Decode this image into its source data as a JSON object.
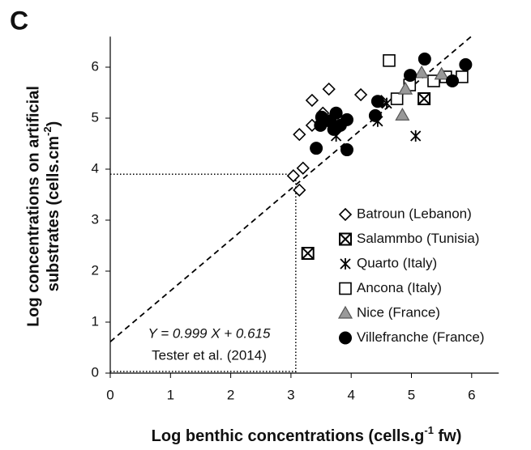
{
  "chart_data": {
    "type": "scatter",
    "panel_label": "C",
    "xlabel": {
      "text": "Log benthic concentrations (cells.g",
      "sup": "-1",
      "tail": " fw)"
    },
    "ylabel": {
      "line1": "Log concentrations on artificial",
      "text": "substrates (cells.cm",
      "sup": "-2",
      "tail": ")"
    },
    "xlim": [
      0,
      6.45
    ],
    "ylim": [
      0,
      6.6
    ],
    "xticks": [
      0,
      1,
      2,
      3,
      4,
      5,
      6
    ],
    "yticks": [
      0,
      1,
      2,
      3,
      4,
      5,
      6
    ],
    "fit": {
      "slope": 0.999,
      "intercept": 0.615,
      "equation": "Y = 0.999 X + 0.615",
      "source": "Tester et al. (2014)"
    },
    "guide": {
      "x": 3.08,
      "y": 3.9
    },
    "series": [
      {
        "name": "Batroun (Lebanon)",
        "marker": "diamond",
        "color": "#ffffff",
        "x": [
          3.04,
          3.2,
          3.14,
          3.14,
          3.35,
          3.63,
          3.35,
          4.16,
          3.53,
          3.55,
          4.5
        ],
        "values": [
          3.87,
          4.02,
          3.59,
          4.68,
          5.35,
          5.57,
          4.86,
          5.46,
          5.1,
          4.94,
          5.33
        ]
      },
      {
        "name": "Salammbo (Tunisia)",
        "marker": "boxx",
        "color": "#ffffff",
        "x": [
          3.28,
          5.21
        ],
        "values": [
          2.35,
          5.38
        ]
      },
      {
        "name": "Quarto (Italy)",
        "marker": "asterisk",
        "color": "#000000",
        "x": [
          5.07,
          4.44,
          3.75,
          4.59
        ],
        "values": [
          4.65,
          4.94,
          4.65,
          5.29
        ]
      },
      {
        "name": "Ancona (Italy)",
        "marker": "square",
        "color": "#ffffff",
        "x": [
          4.63,
          4.97,
          4.76,
          5.57,
          5.84,
          5.37
        ],
        "values": [
          6.13,
          5.65,
          5.38,
          5.81,
          5.81,
          5.73
        ]
      },
      {
        "name": "Nice (France)",
        "marker": "triangle",
        "color": "#999999",
        "x": [
          4.85,
          4.9,
          5.17,
          5.5,
          3.63
        ],
        "values": [
          5.06,
          5.57,
          5.89,
          5.86,
          4.97
        ]
      },
      {
        "name": "Villefranche (France)",
        "marker": "circle",
        "color": "#000000",
        "x": [
          3.42,
          3.93,
          3.51,
          3.71,
          3.75,
          3.82,
          3.93,
          4.44,
          4.4,
          4.98,
          5.22,
          5.68,
          5.9,
          3.49,
          3.65
        ],
        "values": [
          4.41,
          4.38,
          5.02,
          4.78,
          5.1,
          4.86,
          4.97,
          5.33,
          5.05,
          5.84,
          6.16,
          5.73,
          6.05,
          4.86,
          4.94
        ]
      }
    ]
  }
}
